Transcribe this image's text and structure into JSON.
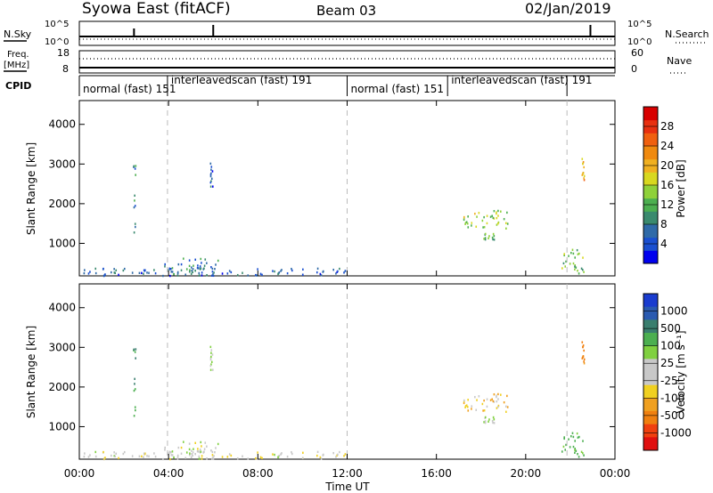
{
  "header": {
    "station": "Syowa East (fitACF)",
    "beam": "Beam 03",
    "date": "02/Jan/2019"
  },
  "top_strips": {
    "nsky_label": "N.Sky",
    "nsearch_label": "N.Search",
    "freq_label_1": "Freq.",
    "freq_label_2": "[MHz]",
    "nave_label": "Nave",
    "cpid_label": "CPID",
    "nsky_ticks": [
      "10^5",
      "10^0"
    ],
    "nsearch_ticks": [
      "10^5",
      "10^0"
    ],
    "freq_ticks": [
      "18",
      "8"
    ],
    "nave_ticks": [
      "60",
      "0"
    ]
  },
  "cpid_segments": [
    {
      "label": "normal (fast) 151",
      "start": 0,
      "end": 3.95
    },
    {
      "label": "interleavedscan (fast) 191",
      "start": 3.95,
      "end": 12.0
    },
    {
      "label": "normal (fast) 151",
      "start": 12.0,
      "end": 16.5
    },
    {
      "label": "interleavedscan (fast) 191",
      "start": 16.5,
      "end": 21.85
    }
  ],
  "x_axis": {
    "label": "Time UT",
    "ticks": [
      "00:00",
      "04:00",
      "08:00",
      "12:00",
      "16:00",
      "20:00",
      "00:00"
    ]
  },
  "y_axis": {
    "label": "Slant Range [km]",
    "ticks": [
      "1000",
      "2000",
      "3000",
      "4000"
    ]
  },
  "power_colorbar": {
    "label": "Power [dB]",
    "ticks": [
      "4",
      "8",
      "12",
      "16",
      "20",
      "24",
      "28"
    ],
    "colors": [
      "#0000ee",
      "#1a4fd0",
      "#2f6aa8",
      "#3a8a6e",
      "#4caf50",
      "#8fd13a",
      "#d8d820",
      "#f0b020",
      "#f08a10",
      "#f06010",
      "#e83010",
      "#d80000"
    ]
  },
  "velocity_colorbar": {
    "label": "Velocity [m s⁻¹]",
    "ticks": [
      "1000",
      "500",
      "100",
      "25",
      "-25",
      "-100",
      "-500",
      "-1000"
    ],
    "colors": [
      "#1a3ccf",
      "#2a5ab0",
      "#3a7e6e",
      "#4caf50",
      "#80d040",
      "#c8c8c8",
      "#c8c8c8",
      "#f0d020",
      "#f0a020",
      "#f08010",
      "#f04010",
      "#e01010"
    ]
  },
  "chart_data": [
    {
      "type": "heatmap",
      "title": "Power",
      "xlabel": "Time UT",
      "ylabel": "Slant Range [km]",
      "xlim": [
        0,
        24
      ],
      "ylim": [
        180,
        4600
      ],
      "colorbar_range": [
        0,
        30
      ],
      "clusters": [
        {
          "t_start": 0.1,
          "t_end": 12.0,
          "r_min": 200,
          "r_max": 400,
          "value": 6
        },
        {
          "t_start": 3.8,
          "t_end": 6.2,
          "r_min": 250,
          "r_max": 650,
          "value": 8
        },
        {
          "t_start": 2.4,
          "t_end": 2.5,
          "r_min": 1300,
          "r_max": 3400,
          "value": 8
        },
        {
          "t_start": 5.85,
          "t_end": 5.95,
          "r_min": 2450,
          "r_max": 3050,
          "value": 6
        },
        {
          "t_start": 17.0,
          "t_end": 19.2,
          "r_min": 1400,
          "r_max": 1850,
          "value": 14
        },
        {
          "t_start": 18.1,
          "t_end": 18.6,
          "r_min": 1100,
          "r_max": 1300,
          "value": 12
        },
        {
          "t_start": 21.6,
          "t_end": 22.6,
          "r_min": 250,
          "r_max": 900,
          "value": 12
        },
        {
          "t_start": 22.5,
          "t_end": 22.6,
          "r_min": 2600,
          "r_max": 3300,
          "value": 20
        }
      ]
    },
    {
      "type": "heatmap",
      "title": "Velocity",
      "xlabel": "Time UT",
      "ylabel": "Slant Range [km]",
      "xlim": [
        0,
        24
      ],
      "ylim": [
        180,
        4600
      ],
      "colorbar_range": [
        -1000,
        1000
      ],
      "clusters": [
        {
          "t_start": 0.1,
          "t_end": 12.0,
          "r_min": 200,
          "r_max": 400,
          "value": 20
        },
        {
          "t_start": 3.8,
          "t_end": 6.2,
          "r_min": 250,
          "r_max": 650,
          "value": 60
        },
        {
          "t_start": 2.4,
          "t_end": 2.5,
          "r_min": 1300,
          "r_max": 3400,
          "value": 500
        },
        {
          "t_start": 5.85,
          "t_end": 5.95,
          "r_min": 2450,
          "r_max": 3050,
          "value": 100
        },
        {
          "t_start": 17.0,
          "t_end": 19.2,
          "r_min": 1400,
          "r_max": 1850,
          "value": -50
        },
        {
          "t_start": 18.1,
          "t_end": 18.6,
          "r_min": 1100,
          "r_max": 1300,
          "value": 100
        },
        {
          "t_start": 21.6,
          "t_end": 22.6,
          "r_min": 250,
          "r_max": 900,
          "value": 300
        },
        {
          "t_start": 22.5,
          "t_end": 22.6,
          "r_min": 2600,
          "r_max": 3300,
          "value": -300
        }
      ]
    }
  ]
}
